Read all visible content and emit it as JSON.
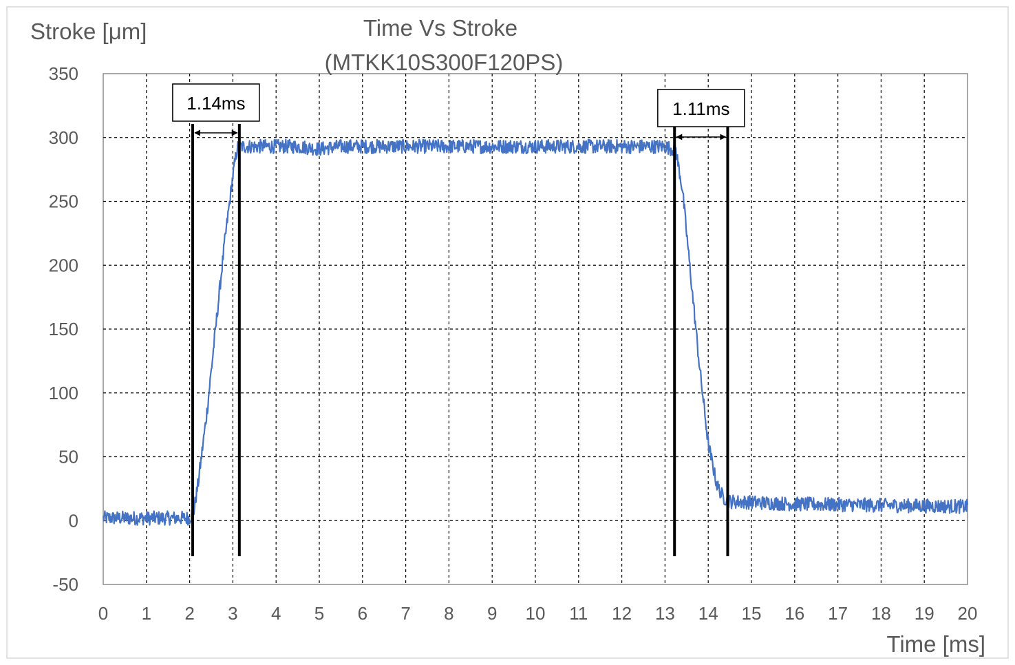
{
  "chart_data": {
    "type": "line",
    "title": "Time Vs Stroke",
    "subtitle": "(MTKK10S300F120PS)",
    "xlabel": "Time [ms]",
    "ylabel": "Stroke [μm]",
    "xlim": [
      0,
      20
    ],
    "ylim": [
      -50,
      350
    ],
    "x_ticks": [
      0,
      1,
      2,
      3,
      4,
      5,
      6,
      7,
      8,
      9,
      10,
      11,
      12,
      13,
      14,
      15,
      16,
      17,
      18,
      19,
      20
    ],
    "y_ticks": [
      -50,
      0,
      50,
      100,
      150,
      200,
      250,
      300,
      350
    ],
    "grid": true,
    "series": [
      {
        "color": "#4472C4",
        "x": [
          0,
          2.0,
          2.1,
          2.2,
          2.4,
          2.6,
          2.8,
          3.0,
          3.1,
          3.2,
          4.5,
          5.0,
          5.5,
          8.0,
          11.0,
          13.0,
          13.25,
          13.4,
          13.6,
          13.8,
          14.0,
          14.2,
          14.35,
          14.5,
          16.0,
          18.0,
          20.0
        ],
        "y": [
          2,
          2,
          8,
          30,
          85,
          150,
          215,
          270,
          292,
          293,
          293,
          291,
          293,
          293,
          293,
          293,
          290,
          260,
          190,
          120,
          60,
          28,
          18,
          15,
          13,
          12,
          11
        ]
      }
    ],
    "annotations": [
      {
        "label": "1.14ms",
        "x_start": 2.07,
        "x_end": 3.15
      },
      {
        "label": "1.11ms",
        "x_start": 13.22,
        "x_end": 14.45
      }
    ]
  }
}
